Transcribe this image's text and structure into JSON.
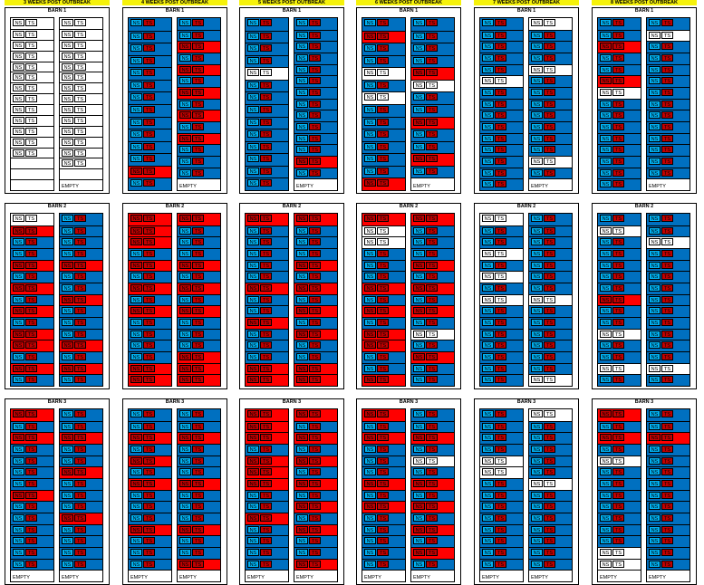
{
  "colors": {
    "blue": "#0070c0",
    "red": "#ff0000",
    "white": "#ffffff",
    "dark_red": "#c00000",
    "light_blue": "#00b0f0"
  },
  "labels": {
    "ns": "NS",
    "ts": "TS",
    "empty": "EMPTY"
  },
  "legend_key": {
    "b": "blue (both)",
    "r": "red (both)",
    "w": "white (none)",
    "x": "blank"
  },
  "panels": [
    {
      "header": "3 WEEKS POST OUTBREAK",
      "barns": [
        {
          "title": "BARN 1",
          "left": "wwwwwwwwwwwwwxxx",
          "right": "wwwwwwwwwwwwwwxe"
        },
        {
          "title": "BARN 2",
          "left": "wrbbrbrbrbrrbrb",
          "right": "bbbbrbbrbbbrbrb"
        },
        {
          "title": "BARN 3",
          "left": "rbrbbbbrbbbbbbe",
          "right": "bbrbbrbbbrbbbbe"
        }
      ]
    },
    {
      "header": "4 WEEKS POST OUTBREAK",
      "barns": [
        {
          "title": "BARN 1",
          "left": "bbbbbbbbbbbbrb",
          "right": "bbrbrbrbrbrbbbe"
        },
        {
          "title": "BARN 2",
          "left": "rrrbrbrbrbbbbrr",
          "right": "rbbbrbrbrbbbrrr"
        },
        {
          "title": "BARN 3",
          "left": "bbrbrbrbbbrbbbe",
          "right": "bbrbbbrbbbrbbre"
        }
      ]
    },
    {
      "header": "5 WEEKS POST OUTBREAK",
      "barns": [
        {
          "title": "BARN 1",
          "left": "bbbbwbbbbbbbbb",
          "right": "bbbbbbbbbbbbrbe"
        },
        {
          "title": "BARN 2",
          "left": "rbbbbbrbbrbbbrr",
          "right": "rbbbrbrbrbrbbrr"
        },
        {
          "title": "BARN 3",
          "left": "rrrbrrrbbrbbbbe",
          "right": "rbrbrbrbrbrbbre"
        }
      ]
    },
    {
      "header": "6 WEEKS POST OUTBREAK",
      "barns": [
        {
          "title": "BARN 1",
          "left": "brbbwbwbbbbbbr",
          "right": "bbbbrwbbrbbrbe"
        },
        {
          "title": "BARN 2",
          "left": "rwwbbbrbrbrrbbr",
          "right": "rbbbrbrbrbwbrbb"
        },
        {
          "title": "BARN 3",
          "left": "rbrbbbrbrbbbbbe",
          "right": "bbrbwbrbrbrbrbe"
        }
      ]
    },
    {
      "header": "7 WEEKS POST OUTBREAK",
      "barns": [
        {
          "title": "BARN 1",
          "left": "bbbbbwbbbbbbbbb",
          "right": "wbbbwbbbbbbbwbe"
        },
        {
          "title": "BARN 2",
          "left": "wbbwbwbwbbbbbbb",
          "right": "bbbbbbbwbbbbbbw"
        },
        {
          "title": "BARN 3",
          "left": "bbbbwwbbbbbbbbe",
          "right": "wbbbbbwbbbbbbbe"
        }
      ]
    },
    {
      "header": "8 WEEKS POST OUTBREAK",
      "barns": [
        {
          "title": "BARN 1",
          "left": "bbrbbrwbbbbbbbb",
          "right": "bwbbbbbbbbbbbbe"
        },
        {
          "title": "BARN 2",
          "left": "bwbbbbbrbbwbbwb",
          "right": "bbwbbbbbbbbbbwb"
        },
        {
          "title": "BARN 3",
          "left": "rbrbwbbbbbbbwwe",
          "right": "bbrbbbbbbbbbbbe"
        }
      ]
    }
  ]
}
